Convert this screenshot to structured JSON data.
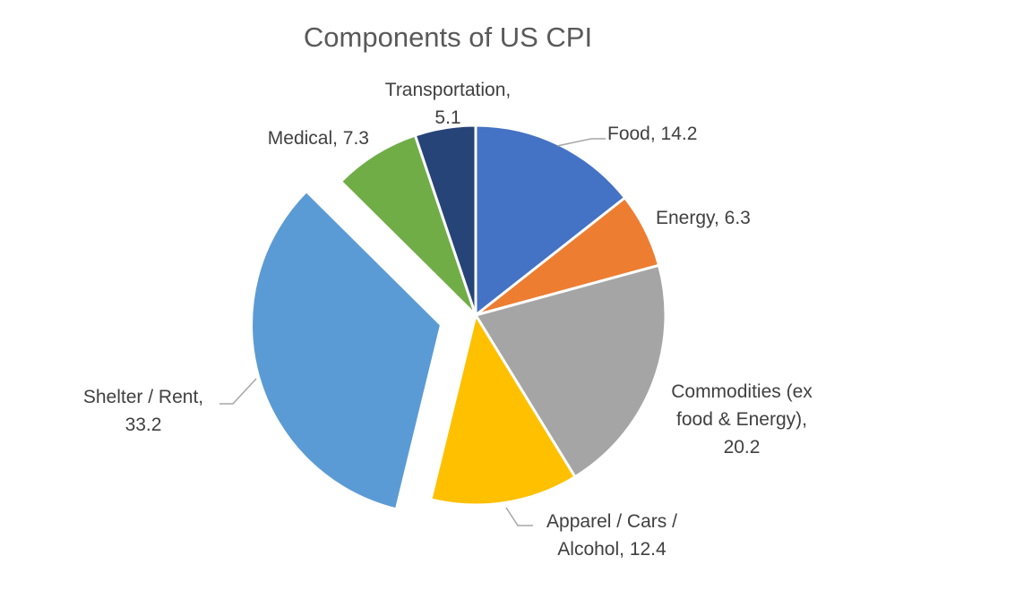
{
  "chart_data": {
    "type": "pie",
    "title": "Components of US CPI",
    "slices": [
      {
        "name": "Food",
        "value": 14.2,
        "color": "#4472C4",
        "label_lines": [
          "Food, 14.2"
        ],
        "explode": false
      },
      {
        "name": "Energy",
        "value": 6.3,
        "color": "#ED7D31",
        "label_lines": [
          "Energy, 6.3"
        ],
        "explode": false
      },
      {
        "name": "Commodities (ex food & Energy)",
        "value": 20.2,
        "color": "#A5A5A5",
        "label_lines": [
          "Commodities (ex",
          "food & Energy),",
          "20.2"
        ],
        "explode": false
      },
      {
        "name": "Apparel / Cars / Alcohol",
        "value": 12.4,
        "color": "#FFC000",
        "label_lines": [
          "Apparel / Cars /",
          "Alcohol, 12.4"
        ],
        "explode": false
      },
      {
        "name": "Shelter / Rent",
        "value": 33.2,
        "color": "#5B9BD5",
        "label_lines": [
          "Shelter / Rent,",
          "33.2"
        ],
        "explode": true
      },
      {
        "name": "Medical",
        "value": 7.3,
        "color": "#70AD47",
        "label_lines": [
          "Medical, 7.3"
        ],
        "explode": false
      },
      {
        "name": "Transportation",
        "value": 5.1,
        "color": "#264478",
        "label_lines": [
          "Transportation,",
          "5.1"
        ],
        "explode": false
      }
    ]
  }
}
